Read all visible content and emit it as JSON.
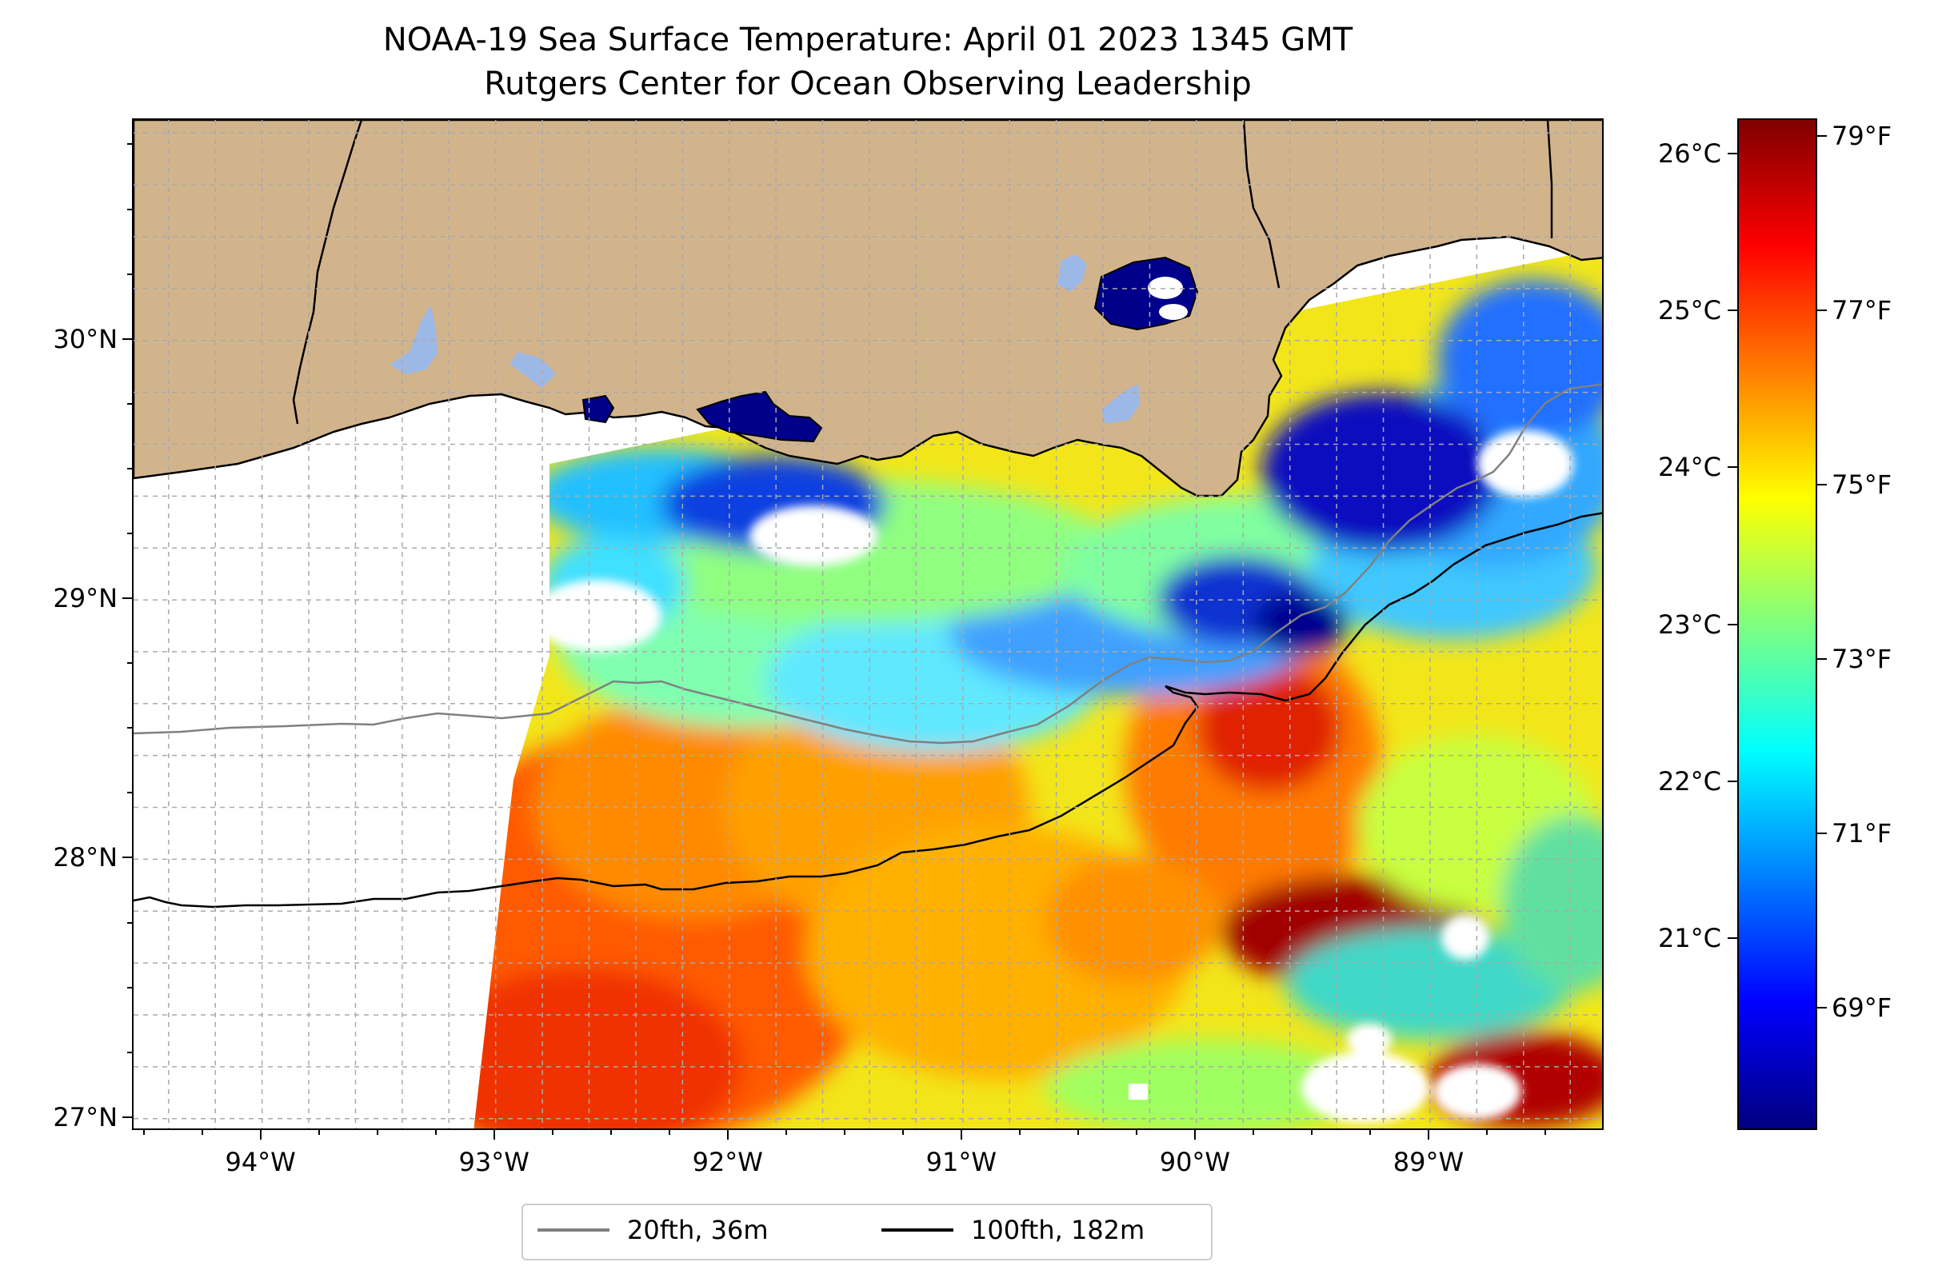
{
  "title": "NOAA-19 Sea Surface Temperature: April 01 2023 1345 GMT",
  "subtitle": "Rutgers Center for Ocean Observing Leadership",
  "map": {
    "lon_range": [
      -94.55,
      -88.25
    ],
    "lat_range": [
      26.95,
      30.85
    ],
    "lon_ticks": [
      {
        "value": -94,
        "label": "94°W"
      },
      {
        "value": -93,
        "label": "93°W"
      },
      {
        "value": -92,
        "label": "92°W"
      },
      {
        "value": -91,
        "label": "91°W"
      },
      {
        "value": -90,
        "label": "90°W"
      },
      {
        "value": -89,
        "label": "89°W"
      }
    ],
    "lat_ticks": [
      {
        "value": 30,
        "label": "30°N"
      },
      {
        "value": 29,
        "label": "29°N"
      },
      {
        "value": 28,
        "label": "28°N"
      },
      {
        "value": 27,
        "label": "27°N"
      }
    ],
    "gridlines": "dashed",
    "land_color": "#d2b48c",
    "lake_color": "#9cb8e6"
  },
  "colorbar": {
    "colormap": "jet",
    "celsius_ticks": [
      {
        "value": 26,
        "label": "26°C"
      },
      {
        "value": 25,
        "label": "25°C"
      },
      {
        "value": 24,
        "label": "24°C"
      },
      {
        "value": 23,
        "label": "23°C"
      },
      {
        "value": 22,
        "label": "22°C"
      },
      {
        "value": 21,
        "label": "21°C"
      }
    ],
    "fahrenheit_ticks": [
      {
        "value": 79,
        "label": "79°F"
      },
      {
        "value": 77,
        "label": "77°F"
      },
      {
        "value": 75,
        "label": "75°F"
      },
      {
        "value": 73,
        "label": "73°F"
      },
      {
        "value": 71,
        "label": "71°F"
      },
      {
        "value": 69,
        "label": "69°F"
      }
    ],
    "range_f": [
      67.6,
      79.2
    ]
  },
  "legend": {
    "items": [
      {
        "label": "20fth, 36m",
        "color": "#808080"
      },
      {
        "label": "100fth, 182m",
        "color": "#000000"
      }
    ]
  }
}
